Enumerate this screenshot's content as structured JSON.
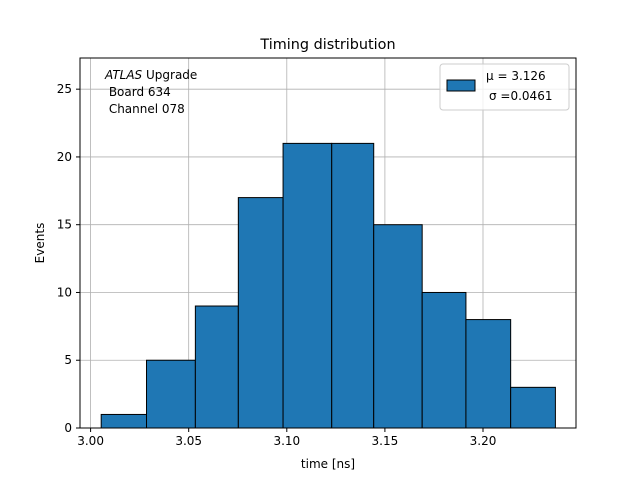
{
  "chart_data": {
    "type": "bar",
    "title": "Timing distribution",
    "xlabel": "time [ns]",
    "ylabel": "Events",
    "xlim": [
      2.9946,
      3.2474
    ],
    "ylim": [
      0,
      27.3
    ],
    "xticks": [
      3.0,
      3.05,
      3.1,
      3.15,
      3.2
    ],
    "xtick_labels": [
      "3.00",
      "3.05",
      "3.10",
      "3.15",
      "3.20"
    ],
    "yticks": [
      0,
      5,
      10,
      15,
      20,
      25
    ],
    "ytick_labels": [
      "0",
      "5",
      "10",
      "15",
      "20",
      "25"
    ],
    "bin_edges": [
      3.0054,
      3.0285,
      3.0534,
      3.0753,
      3.0981,
      3.1229,
      3.1443,
      3.169,
      3.1913,
      3.2141,
      3.2369
    ],
    "counts": [
      1,
      5,
      9,
      17,
      21,
      21,
      15,
      10,
      8,
      3
    ],
    "bar_color": "#1f77b4",
    "edge_color": "#000000",
    "grid": true,
    "legend": {
      "placement": "top-right",
      "line1": "μ = 3.126",
      "line2": "σ =0.0461"
    },
    "annotation": {
      "experiment": "ATLAS",
      "tag": " Upgrade",
      "board": " Board 634",
      "channel": " Channel 078"
    }
  }
}
